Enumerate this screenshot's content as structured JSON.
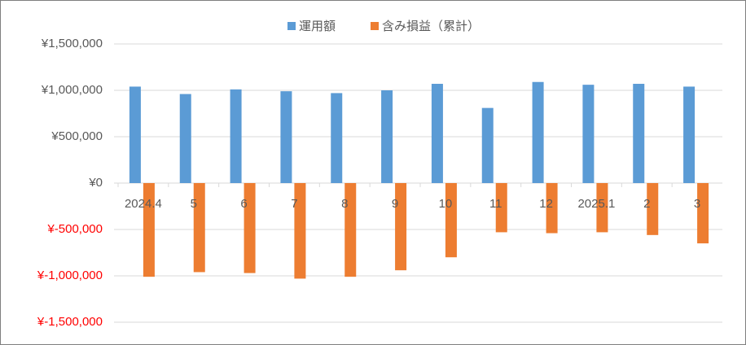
{
  "chart_data": {
    "type": "bar",
    "categories": [
      "2024.4",
      "5",
      "6",
      "7",
      "8",
      "9",
      "10",
      "11",
      "12",
      "2025.1",
      "2",
      "3"
    ],
    "series": [
      {
        "name": "運用額",
        "color": "#5b9bd5",
        "values": [
          1040000,
          960000,
          1010000,
          990000,
          970000,
          1000000,
          1070000,
          810000,
          1090000,
          1060000,
          1070000,
          1040000
        ]
      },
      {
        "name": "含み損益（累計）",
        "color": "#ed7d31",
        "values": [
          -1010000,
          -960000,
          -970000,
          -1030000,
          -1010000,
          -940000,
          -800000,
          -530000,
          -540000,
          -530000,
          -560000,
          -650000
        ]
      }
    ],
    "ylim": [
      -1500000,
      1500000
    ],
    "yticks": [
      {
        "value": -1500000,
        "label": "¥-1,500,000"
      },
      {
        "value": -1000000,
        "label": "¥-1,000,000"
      },
      {
        "value": -500000,
        "label": "¥-500,000"
      },
      {
        "value": 0,
        "label": "¥0"
      },
      {
        "value": 500000,
        "label": "¥500,000"
      },
      {
        "value": 1000000,
        "label": "¥1,000,000"
      },
      {
        "value": 1500000,
        "label": "¥1,500,000"
      }
    ],
    "negative_tick_color": "#ff0000",
    "grid": true,
    "legend": "top"
  }
}
